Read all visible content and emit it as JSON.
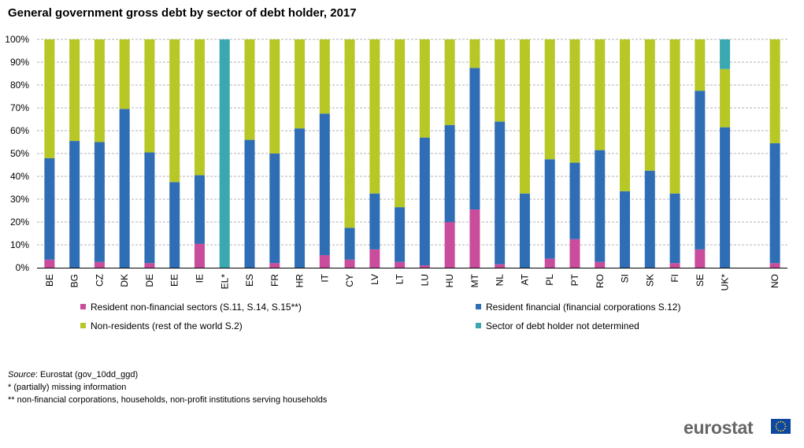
{
  "chart_data": {
    "type": "bar",
    "stacked": true,
    "title": "General government gross debt by sector of debt holder, 2017",
    "categories": [
      "BE",
      "BG",
      "CZ",
      "DK",
      "DE",
      "EE",
      "IE",
      "EL*",
      "ES",
      "FR",
      "HR",
      "IT",
      "CY",
      "LV",
      "LT",
      "LU",
      "HU",
      "MT",
      "NL",
      "AT",
      "PL",
      "PT",
      "RO",
      "SI",
      "SK",
      "FI",
      "SE",
      "UK*",
      "",
      "NO"
    ],
    "ylim": [
      0,
      100
    ],
    "y_ticks": [
      "0%",
      "10%",
      "20%",
      "30%",
      "40%",
      "50%",
      "60%",
      "70%",
      "80%",
      "90%",
      "100%"
    ],
    "grid": "horizontal dashed",
    "legend_position": "bottom",
    "series": [
      {
        "name": "Resident non-financial sectors (S.11, S.14, S.15**)",
        "color": "#c94d9c",
        "values": [
          3.5,
          0,
          2.5,
          0,
          2,
          0,
          10.5,
          0,
          0,
          2,
          0,
          5.5,
          3.5,
          8,
          2.5,
          1,
          20,
          25.5,
          1.5,
          0,
          4,
          12.5,
          2.5,
          0,
          0,
          2,
          8,
          0,
          null,
          2
        ]
      },
      {
        "name": "Resident financial (financial corporations S.12)",
        "color": "#2f6eb5",
        "values": [
          44.5,
          55.5,
          52.5,
          69.5,
          48.5,
          37.5,
          30,
          0,
          56,
          48,
          61,
          62,
          14,
          24.5,
          24,
          56,
          42.5,
          62,
          62.5,
          32.5,
          43.5,
          33.5,
          49,
          33.5,
          42.5,
          30.5,
          69.5,
          61.5,
          null,
          52.5
        ]
      },
      {
        "name": "Non-residents (rest of the world S.2)",
        "color": "#b6c726",
        "values": [
          52,
          44.5,
          45,
          30.5,
          49.5,
          62.5,
          59.5,
          0,
          44,
          50,
          39,
          32.5,
          82.5,
          67.5,
          73.5,
          43,
          37.5,
          12.5,
          36,
          67.5,
          52.5,
          54,
          48.5,
          66.5,
          57.5,
          67.5,
          22.5,
          25.5,
          null,
          45.5
        ]
      },
      {
        "name": "Sector of debt holder not determined",
        "color": "#3aa8b0",
        "values": [
          0,
          0,
          0,
          0,
          0,
          0,
          0,
          100,
          0,
          0,
          0,
          0,
          0,
          0,
          0,
          0,
          0,
          0,
          0,
          0,
          0,
          0,
          0,
          0,
          0,
          0,
          0,
          13,
          null,
          0
        ]
      }
    ]
  },
  "source": {
    "label": "Source",
    "text": ": Eurostat (gov_10dd_ggd)",
    "note1": "* (partially) missing information",
    "note2": "** non-financial corporations, households, non-profit institutions serving households"
  },
  "logo": {
    "text": "eurostat"
  }
}
